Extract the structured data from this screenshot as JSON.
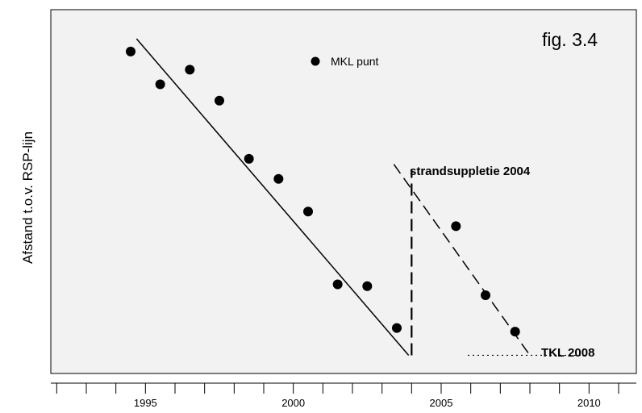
{
  "chart_data": {
    "type": "scatter",
    "title": "",
    "figure_label": "fig.  3.4",
    "xlabel": "",
    "ylabel": "Afstand t.o.v. RSP-lijn",
    "xlim": [
      1991.8,
      2011.6
    ],
    "ylim": [
      0,
      100
    ],
    "x_tick_values": [
      1992,
      1993,
      1994,
      1995,
      1996,
      1997,
      1998,
      1999,
      2000,
      2001,
      2002,
      2003,
      2004,
      2005,
      2006,
      2007,
      2008,
      2009,
      2010,
      2011
    ],
    "x_tick_labels": [
      {
        "value": 1995,
        "label": "1995"
      },
      {
        "value": 2000,
        "label": "2000"
      },
      {
        "value": 2005,
        "label": "2005"
      },
      {
        "value": 2010,
        "label": "2010"
      }
    ],
    "grid": false,
    "legend": {
      "label": "MKL punt",
      "position": "top-center"
    },
    "series": [
      {
        "name": "MKL punt",
        "type": "scatter",
        "x": [
          1994.5,
          1995.5,
          1996.5,
          1997.5,
          1998.5,
          1999.5,
          2000.5,
          2001.5,
          2002.5,
          2003.5,
          2005.5,
          2006.5,
          2007.5
        ],
        "y": [
          88.5,
          79.5,
          83.5,
          75,
          59,
          53.5,
          44.5,
          24.5,
          24,
          12.5,
          40.5,
          21.5,
          11.5
        ]
      }
    ],
    "trend_lines": [
      {
        "style": "solid",
        "x": [
          1994.7,
          2003.9
        ],
        "y": [
          92,
          5
        ]
      },
      {
        "style": "dashed",
        "x": [
          2003.4,
          2008.0
        ],
        "y": [
          57.5,
          5
        ]
      },
      {
        "style": "dotted",
        "x": [
          2005.9,
          2010.0
        ],
        "y": [
          5,
          5
        ]
      }
    ],
    "vertical_markers": [
      {
        "x": 2004.0,
        "y_range": [
          5,
          56
        ],
        "style": "dashed",
        "label": "strandsuppletie 2004"
      }
    ],
    "annotations": [
      {
        "text": "TKL 2008",
        "x": 2008.2,
        "y": 0
      }
    ]
  }
}
